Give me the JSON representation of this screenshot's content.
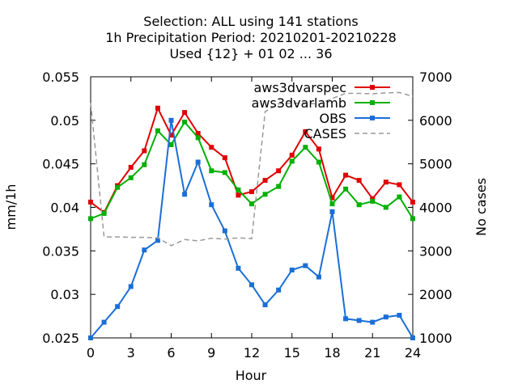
{
  "chart_data": {
    "type": "line",
    "title_lines": [
      "Selection: ALL using   141 stations",
      "1h Precipitation   Period: 20210201-20210228",
      "Used {12} + 01 02 ... 36"
    ],
    "xlabel": "Hour",
    "ylabel": "mm/1h",
    "y2label": "No cases",
    "xlim": [
      0,
      24
    ],
    "ylim": [
      0.025,
      0.055
    ],
    "y2lim": [
      1000,
      7000
    ],
    "x_ticks": [
      0,
      3,
      6,
      9,
      12,
      15,
      18,
      21,
      24
    ],
    "y_ticks": [
      "0.025",
      "0.03",
      "0.035",
      "0.04",
      "0.045",
      "0.05",
      "0.055"
    ],
    "y2_ticks": [
      "1000",
      "2000",
      "3000",
      "4000",
      "5000",
      "6000",
      "7000"
    ],
    "legend_position": "top-right",
    "grid": false,
    "x": [
      0,
      1,
      2,
      3,
      4,
      5,
      6,
      7,
      8,
      9,
      10,
      11,
      12,
      13,
      14,
      15,
      16,
      17,
      18,
      19,
      20,
      21,
      22,
      23,
      24
    ],
    "series": [
      {
        "name": "aws3dvarspec",
        "color": "#e00000",
        "axis": "y",
        "values": [
          0.0406,
          0.0394,
          0.0425,
          0.0446,
          0.0465,
          0.0514,
          0.0483,
          0.0509,
          0.0485,
          0.0469,
          0.0457,
          0.0414,
          0.0418,
          0.0431,
          0.0442,
          0.046,
          0.0487,
          0.0467,
          0.0411,
          0.0437,
          0.0431,
          0.041,
          0.0429,
          0.0426,
          0.0406
        ]
      },
      {
        "name": "aws3dvarlamb",
        "color": "#00b000",
        "axis": "y",
        "values": [
          0.0387,
          0.0393,
          0.0423,
          0.0434,
          0.0449,
          0.0488,
          0.0472,
          0.0498,
          0.048,
          0.0442,
          0.044,
          0.042,
          0.0404,
          0.0415,
          0.0424,
          0.0453,
          0.0469,
          0.0452,
          0.0404,
          0.0421,
          0.0403,
          0.0407,
          0.04,
          0.0412,
          0.0387
        ]
      },
      {
        "name": "OBS",
        "color": "#1a6fd6",
        "axis": "y",
        "values": [
          0.025,
          0.0268,
          0.0286,
          0.0309,
          0.0351,
          0.0362,
          0.05,
          0.0415,
          0.0452,
          0.0403,
          0.0373,
          0.033,
          0.0311,
          0.0288,
          0.0305,
          0.0328,
          0.0333,
          0.032,
          0.0395,
          0.0272,
          0.027,
          0.0268,
          0.0274,
          0.0276,
          0.025
        ]
      },
      {
        "name": "CASES",
        "color": "#999999",
        "axis": "y2",
        "values": [
          6400,
          3320,
          3320,
          3310,
          3310,
          3300,
          3120,
          3260,
          3230,
          3290,
          3270,
          3300,
          3280,
          6200,
          6380,
          6390,
          6400,
          6370,
          6500,
          6620,
          6620,
          6610,
          6630,
          6640,
          6550
        ]
      }
    ]
  }
}
